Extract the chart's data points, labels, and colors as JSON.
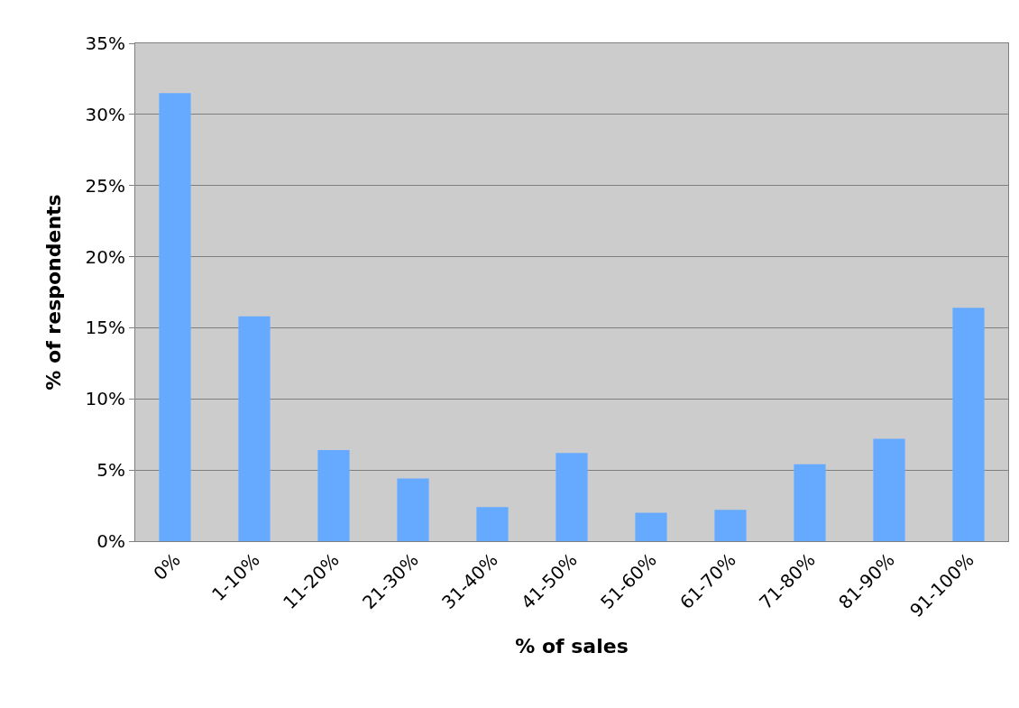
{
  "chart_data": {
    "type": "bar",
    "xlabel": "% of sales",
    "ylabel": "% of respondents",
    "categories": [
      "0%",
      "1-10%",
      "11-20%",
      "21-30%",
      "31-40%",
      "41-50%",
      "51-60%",
      "61-70%",
      "71-80%",
      "81-90%",
      "91-100%"
    ],
    "values": [
      31.5,
      15.8,
      6.4,
      4.4,
      2.4,
      6.2,
      2.0,
      2.2,
      5.4,
      7.2,
      16.4
    ],
    "color": "#66aaff",
    "ylim": [
      0,
      35
    ],
    "yticks": [
      {
        "value": 0,
        "label": "0%"
      },
      {
        "value": 5,
        "label": "5%"
      },
      {
        "value": 10,
        "label": "10%"
      },
      {
        "value": 15,
        "label": "15%"
      },
      {
        "value": 20,
        "label": "20%"
      },
      {
        "value": 25,
        "label": "25%"
      },
      {
        "value": 30,
        "label": "30%"
      },
      {
        "value": 35,
        "label": "35%"
      }
    ],
    "grid": "y"
  }
}
